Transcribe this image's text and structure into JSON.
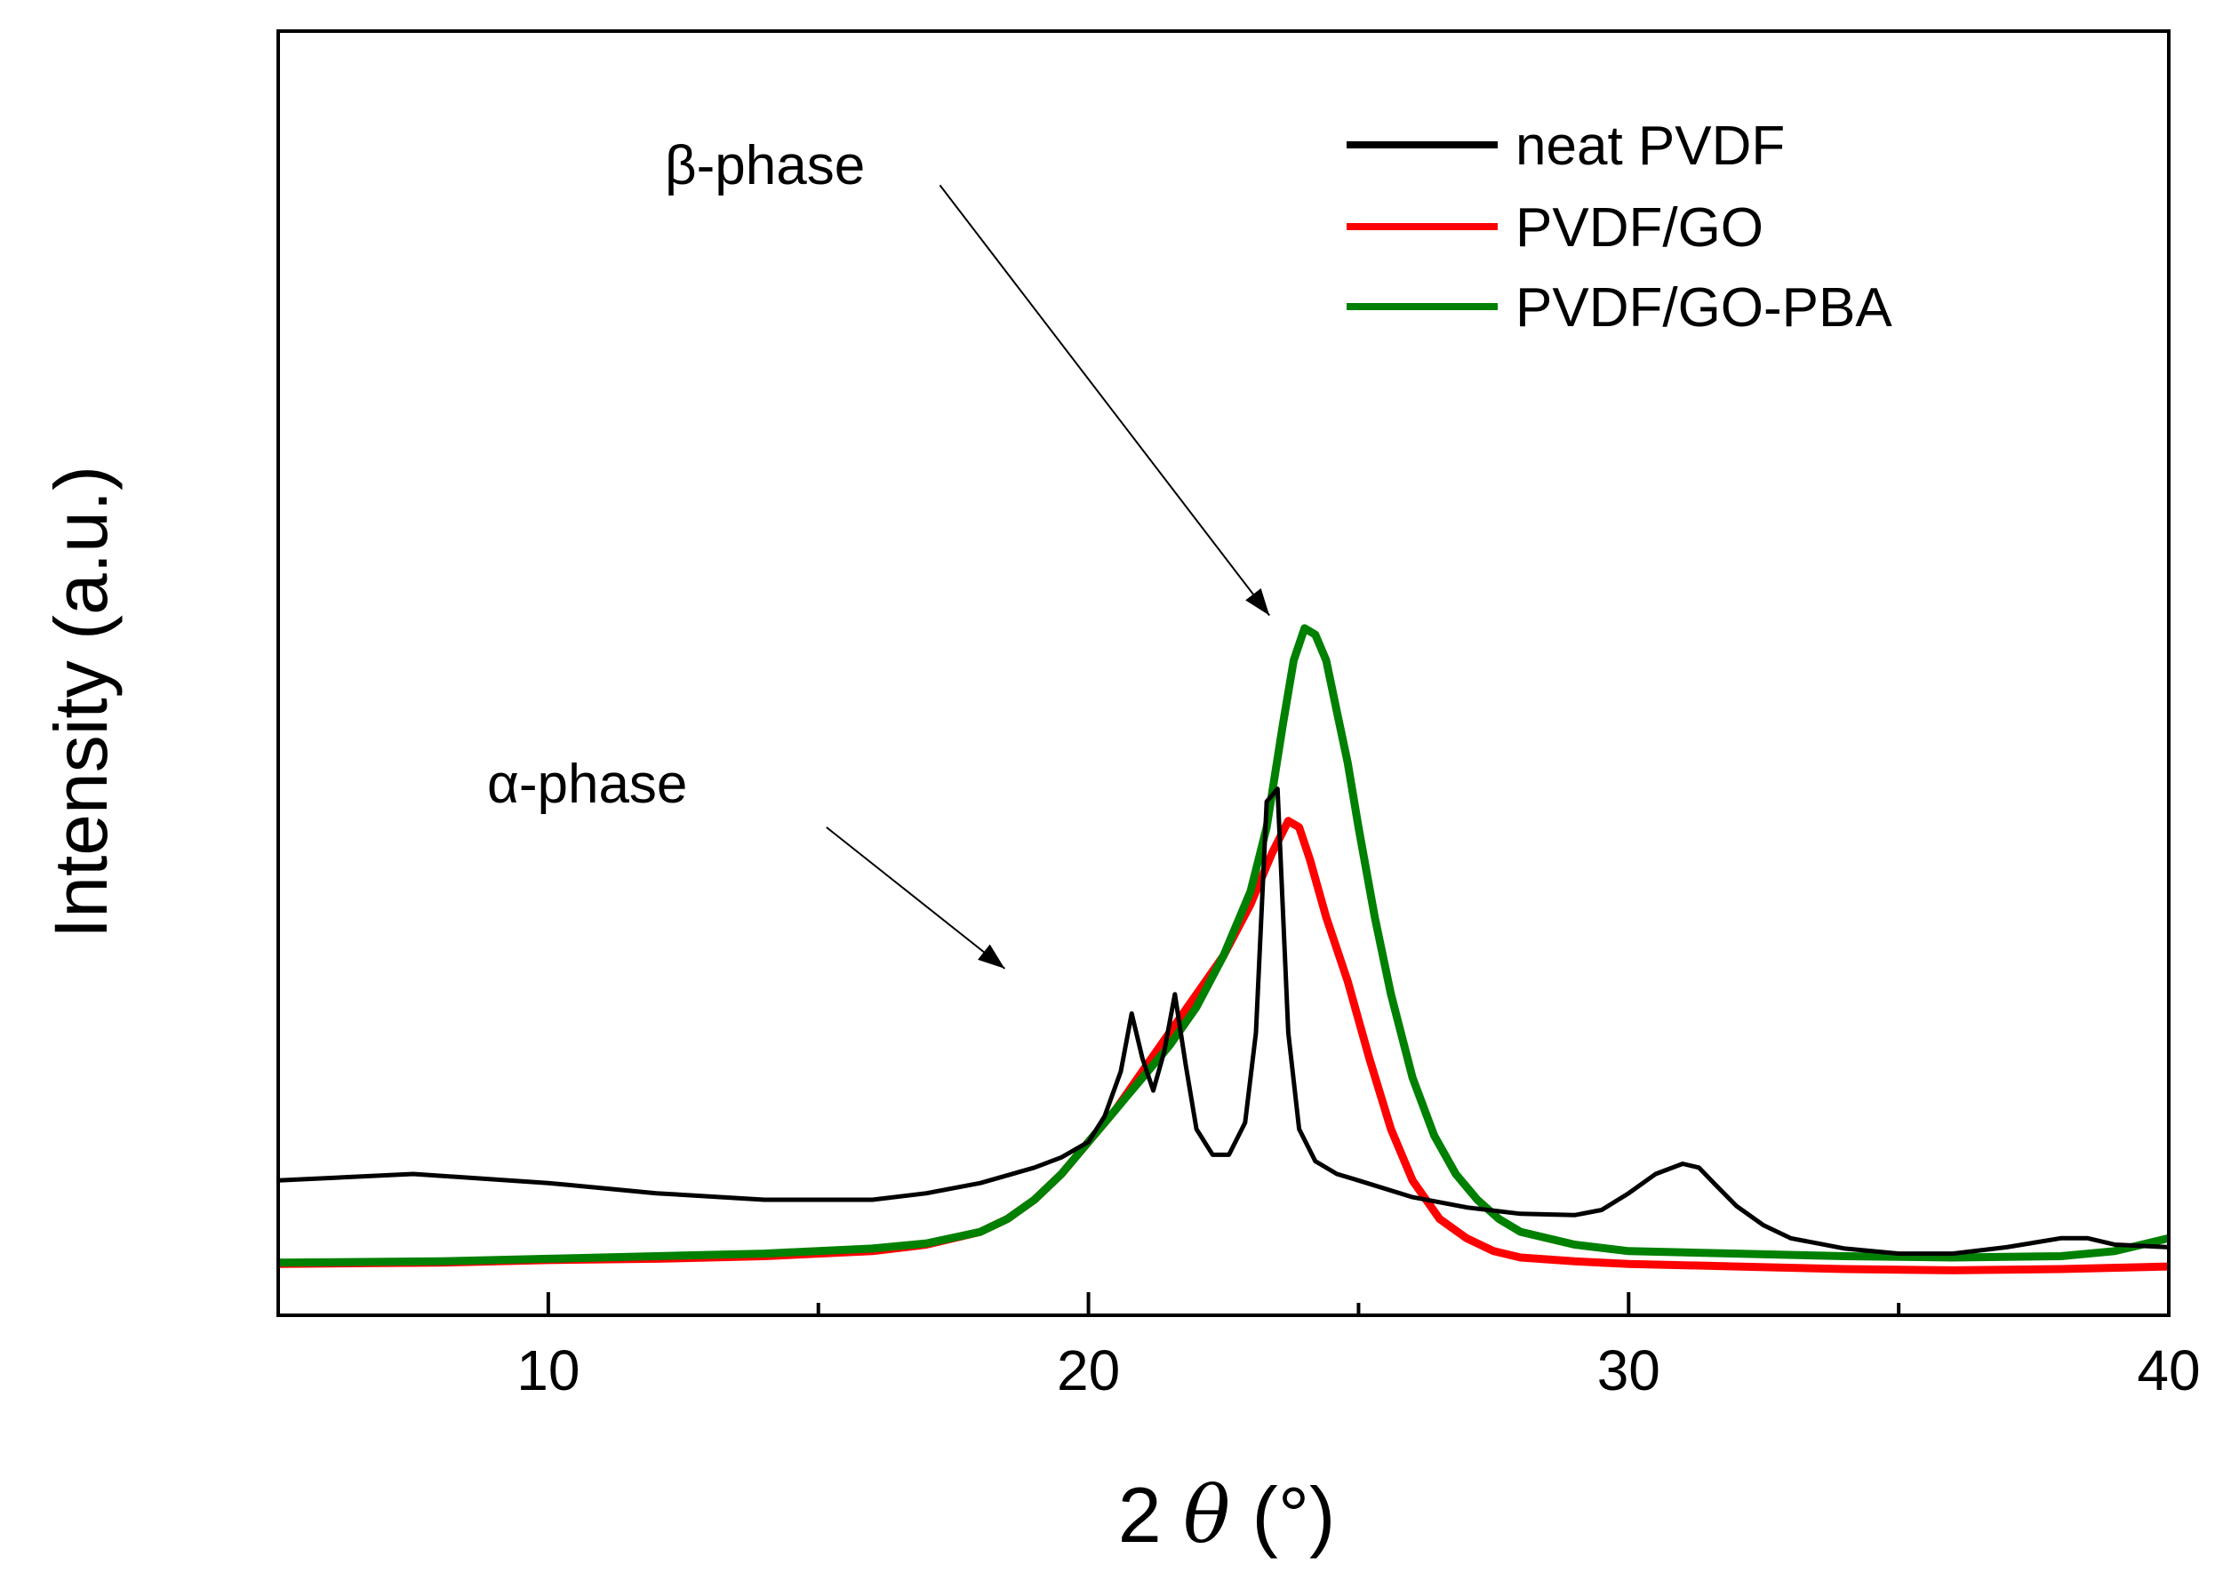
{
  "chart_data": {
    "type": "line",
    "title": "",
    "xlabel_prefix": "2 ",
    "xlabel_symbol": "θ",
    "xlabel_suffix": " (°)",
    "ylabel": "Intensity (a.u.)",
    "xlim": [
      5,
      40
    ],
    "ylim": [
      0,
      100
    ],
    "x_ticks": [
      10,
      20,
      30,
      40
    ],
    "x_tick_labels": [
      "10",
      "20",
      "30",
      "40"
    ],
    "x_minor_ticks": [
      15,
      25,
      35
    ],
    "legend_position": "top-right",
    "series": [
      {
        "name": "neat PVDF",
        "color": "#000000",
        "x": [
          5,
          7.5,
          10,
          12,
          14,
          16,
          17,
          18,
          19,
          19.5,
          20,
          20.3,
          20.6,
          20.8,
          21.0,
          21.2,
          21.4,
          21.6,
          21.8,
          22.0,
          22.3,
          22.6,
          22.9,
          23.1,
          23.3,
          23.5,
          23.7,
          23.9,
          24.2,
          24.6,
          25,
          26,
          27,
          28,
          29,
          29.5,
          30,
          30.5,
          31,
          31.3,
          31.6,
          32,
          32.5,
          33,
          34,
          35,
          36,
          37,
          38,
          38.5,
          39,
          40
        ],
        "y": [
          10.5,
          11,
          10.3,
          9.5,
          9.0,
          9.0,
          9.5,
          10.3,
          11.5,
          12.3,
          13.5,
          15.5,
          19,
          23.5,
          20,
          17.5,
          20.5,
          25,
          19.5,
          14.5,
          12.5,
          12.5,
          15,
          22,
          40,
          41,
          22,
          14.5,
          12,
          11,
          10.5,
          9.2,
          8.4,
          7.9,
          7.8,
          8.2,
          9.5,
          11,
          11.8,
          11.5,
          10.2,
          8.5,
          7.0,
          6.0,
          5.2,
          4.8,
          4.8,
          5.3,
          6.0,
          6.0,
          5.5,
          5.3
        ]
      },
      {
        "name": "PVDF/GO",
        "color": "#ff0000",
        "x": [
          5,
          8,
          10,
          12,
          14,
          16,
          17,
          18,
          18.5,
          19,
          19.5,
          20,
          20.5,
          21,
          21.5,
          22,
          22.5,
          23,
          23.4,
          23.7,
          23.9,
          24.1,
          24.4,
          24.8,
          25.2,
          25.6,
          26,
          26.5,
          27,
          27.5,
          28,
          29,
          30,
          32,
          34,
          36,
          38,
          40
        ],
        "y": [
          4,
          4.1,
          4.3,
          4.4,
          4.6,
          5.0,
          5.5,
          6.5,
          7.5,
          9.0,
          11,
          13.5,
          16,
          19,
          22,
          25,
          28,
          32,
          36,
          38.5,
          38,
          35.5,
          31,
          26,
          20,
          14.5,
          10.5,
          7.5,
          6.0,
          5.0,
          4.5,
          4.2,
          4.0,
          3.8,
          3.6,
          3.5,
          3.6,
          3.8
        ]
      },
      {
        "name": "PVDF/GO-PBA",
        "color": "#008000",
        "x": [
          5,
          8,
          10,
          12,
          14,
          16,
          17,
          18,
          18.5,
          19,
          19.5,
          20,
          20.5,
          21,
          21.5,
          22,
          22.5,
          23,
          23.3,
          23.6,
          23.8,
          24.0,
          24.2,
          24.4,
          24.6,
          24.8,
          25.0,
          25.3,
          25.6,
          26,
          26.4,
          26.8,
          27.2,
          27.6,
          28,
          29,
          30,
          32,
          34,
          36,
          38,
          39,
          40
        ],
        "y": [
          4.1,
          4.2,
          4.4,
          4.6,
          4.8,
          5.2,
          5.6,
          6.5,
          7.5,
          9.0,
          11,
          13.5,
          16,
          18.5,
          21,
          24,
          28,
          33,
          38,
          46,
          51,
          53.5,
          53,
          51,
          47,
          43,
          38,
          31,
          25,
          18.5,
          14,
          11,
          9.0,
          7.5,
          6.5,
          5.5,
          5.0,
          4.8,
          4.6,
          4.5,
          4.6,
          5.0,
          6.0
        ]
      }
    ],
    "annotations": [
      {
        "label": "β-phase",
        "arrow_from": [
          17.25,
          88
        ],
        "arrow_to": [
          23.35,
          54.5
        ]
      },
      {
        "label": "α-phase",
        "arrow_from": [
          15.15,
          38
        ],
        "arrow_to": [
          18.45,
          27
        ]
      }
    ]
  }
}
